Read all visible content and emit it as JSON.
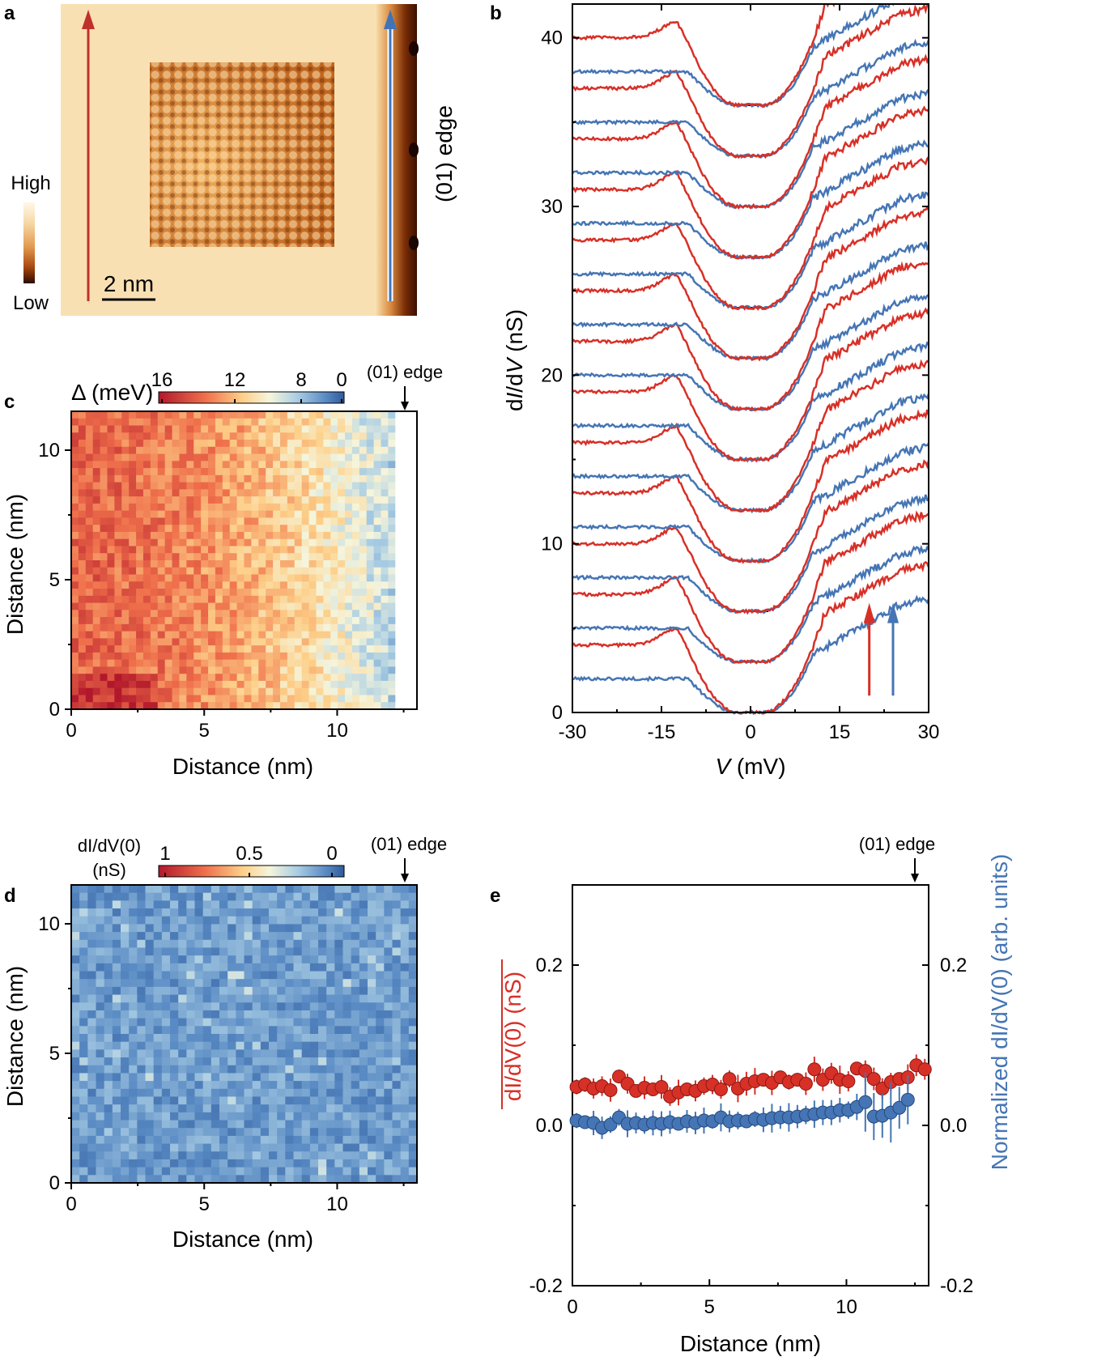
{
  "figure": {
    "panel_labels": [
      "a",
      "b",
      "c",
      "d",
      "e"
    ]
  },
  "panel_a": {
    "colorbar_high": "High",
    "colorbar_low": "Low",
    "scalebar": "2 nm",
    "edge_label": "(01) edge",
    "colors": {
      "red_arrow": "#c0302b",
      "blue_arrow": "#3f74b8",
      "edge_dark": "#4a1a05",
      "substrate": "#f6d9a6"
    }
  },
  "panel_b": {
    "ylabel_pre": "d",
    "ylabel_i": "I",
    "ylabel_mid": "/d",
    "ylabel_v": "V",
    "ylabel_post": " (nS)",
    "xlabel_v": "V",
    "xlabel_post": " (mV)",
    "colors": {
      "red": "#d73027",
      "blue": "#4575b4"
    }
  },
  "panel_c": {
    "colorbar_title": "Δ (meV)",
    "edge_label": "(01) edge",
    "xlabel": "Distance (nm)",
    "ylabel": "Distance (nm)",
    "colorbar_ticks": [
      "16",
      "12",
      "8",
      "0"
    ]
  },
  "panel_d": {
    "colorbar_title_line1": "dI/dV(0)",
    "colorbar_title_line2": "(nS)",
    "edge_label": "(01) edge",
    "xlabel": "Distance (nm)",
    "ylabel": "Distance (nm)",
    "colorbar_ticks": [
      "1",
      "0.5",
      "0"
    ]
  },
  "panel_e": {
    "edge_label": "(01) edge",
    "xlabel": "Distance (nm)",
    "ylabel_left": "dI/dV(0) (nS)",
    "ylabel_right": "Normalized dI/dV(0) (arb. units)"
  },
  "chart_data": [
    {
      "panel": "b",
      "type": "line",
      "title": "",
      "xlabel": "V (mV)",
      "ylabel": "dI/dV (nS)",
      "xlim": [
        -30,
        30
      ],
      "ylim": [
        0,
        42
      ],
      "x_ticks": [
        -30,
        -15,
        0,
        15,
        30
      ],
      "y_ticks": [
        0,
        10,
        20,
        30,
        40
      ],
      "offset_step": 3,
      "num_pairs": 13,
      "gap_minima": [
        0,
        3,
        6,
        9,
        12,
        15,
        18,
        21,
        24,
        27,
        30,
        33,
        36
      ],
      "series": [
        {
          "name": "red (left line)",
          "color": "#d73027",
          "left_level": 4.0,
          "right_level": 7.0,
          "coherence_peak_mV": -12,
          "gap_halfwidth_mV": 7
        },
        {
          "name": "blue (edge line)",
          "color": "#4575b4",
          "left_level": 2.0,
          "right_level": 5.0,
          "coherence_peak_mV": null,
          "gap_halfwidth_mV": 5
        }
      ],
      "arrows_at_mV": [
        {
          "color": "red",
          "V": 20
        },
        {
          "color": "blue",
          "V": 24
        }
      ]
    },
    {
      "panel": "c",
      "type": "heatmap",
      "quantity": "Δ (meV)",
      "xlabel": "Distance (nm)",
      "ylabel": "Distance (nm)",
      "xlim": [
        0,
        13
      ],
      "ylim": [
        0,
        11.5
      ],
      "x_ticks": [
        0,
        5,
        10
      ],
      "y_ticks": [
        0,
        5,
        10
      ],
      "color_range": [
        16,
        0
      ],
      "description": "gap ~12-16 meV far from edge, decreasing toward ~4-8 meV near the (01) edge at ~12.5 nm"
    },
    {
      "panel": "d",
      "type": "heatmap",
      "quantity": "dI/dV(0) (nS)",
      "xlabel": "Distance (nm)",
      "ylabel": "Distance (nm)",
      "xlim": [
        0,
        13
      ],
      "ylim": [
        0,
        11.5
      ],
      "x_ticks": [
        0,
        5,
        10
      ],
      "y_ticks": [
        0,
        5,
        10
      ],
      "color_range": [
        1,
        0
      ],
      "description": "uniformly near zero (~0.05 nS) everywhere"
    },
    {
      "panel": "e",
      "type": "scatter",
      "xlabel": "Distance (nm)",
      "ylabel_left": "dI/dV(0) (nS)",
      "ylabel_right": "Normalized dI/dV(0) (arb. units)",
      "xlim": [
        0,
        13
      ],
      "ylim": [
        -0.2,
        0.3
      ],
      "x_ticks": [
        0,
        5,
        10
      ],
      "y_ticks": [
        -0.2,
        0.0,
        0.2
      ],
      "series": [
        {
          "name": "dI/dV(0) (nS)",
          "color": "#d73027",
          "x": [
            0.15,
            0.46,
            0.77,
            1.08,
            1.39,
            1.7,
            2.01,
            2.32,
            2.63,
            2.94,
            3.25,
            3.56,
            3.87,
            4.18,
            4.49,
            4.8,
            5.11,
            5.42,
            5.73,
            6.04,
            6.35,
            6.66,
            6.97,
            7.28,
            7.59,
            7.9,
            8.21,
            8.52,
            8.83,
            9.14,
            9.45,
            9.76,
            10.07,
            10.38,
            10.69,
            11.0,
            11.31,
            11.62,
            11.93,
            12.24,
            12.55,
            12.86
          ],
          "values": [
            0.048,
            0.051,
            0.046,
            0.049,
            0.044,
            0.061,
            0.052,
            0.043,
            0.047,
            0.045,
            0.048,
            0.036,
            0.041,
            0.045,
            0.043,
            0.049,
            0.051,
            0.045,
            0.058,
            0.046,
            0.052,
            0.055,
            0.057,
            0.053,
            0.06,
            0.054,
            0.057,
            0.052,
            0.07,
            0.057,
            0.065,
            0.057,
            0.055,
            0.071,
            0.068,
            0.058,
            0.046,
            0.054,
            0.058,
            0.06,
            0.075,
            0.07
          ]
        },
        {
          "name": "Normalized dI/dV(0) (arb. units)",
          "color": "#4575b4",
          "x": [
            0.15,
            0.46,
            0.77,
            1.08,
            1.39,
            1.7,
            2.01,
            2.32,
            2.63,
            2.94,
            3.25,
            3.56,
            3.87,
            4.18,
            4.49,
            4.8,
            5.11,
            5.42,
            5.73,
            6.04,
            6.35,
            6.66,
            6.97,
            7.28,
            7.59,
            7.9,
            8.21,
            8.52,
            8.83,
            9.14,
            9.45,
            9.76,
            10.07,
            10.38,
            10.69,
            11.0,
            11.31,
            11.62,
            11.93,
            12.24
          ],
          "values": [
            0.006,
            0.004,
            0.003,
            -0.003,
            0.001,
            0.01,
            0.002,
            0.003,
            0.001,
            0.003,
            0.002,
            0.004,
            0.002,
            0.005,
            0.003,
            0.006,
            0.005,
            0.01,
            0.005,
            0.006,
            0.005,
            0.008,
            0.007,
            0.009,
            0.01,
            0.01,
            0.011,
            0.013,
            0.014,
            0.016,
            0.016,
            0.019,
            0.019,
            0.023,
            0.029,
            0.011,
            0.012,
            0.016,
            0.022,
            0.032
          ]
        }
      ]
    }
  ]
}
